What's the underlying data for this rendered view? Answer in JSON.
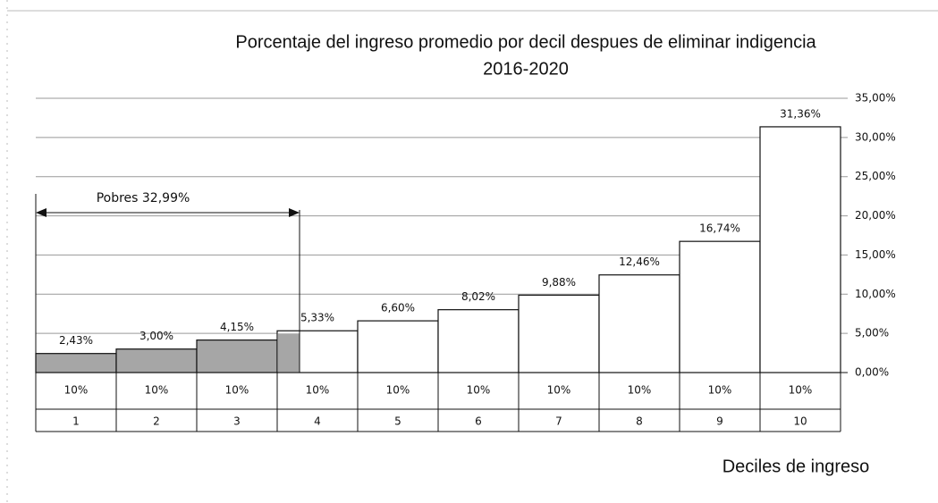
{
  "chart_data": {
    "type": "bar",
    "title": "Porcentaje del ingreso promedio por decil despues de eliminar indigencia",
    "subtitle": "2016-2020",
    "x_label": "Deciles de ingreso",
    "annotation": "Pobres 32,99%",
    "categories": [
      "1",
      "2",
      "3",
      "4",
      "5",
      "6",
      "7",
      "8",
      "9",
      "10"
    ],
    "shares": [
      "10%",
      "10%",
      "10%",
      "10%",
      "10%",
      "10%",
      "10%",
      "10%",
      "10%",
      "10%"
    ],
    "values": [
      2.43,
      3.0,
      4.15,
      5.33,
      6.6,
      8.02,
      9.88,
      12.46,
      16.74,
      31.36
    ],
    "value_labels": [
      "2,43%",
      "3,00%",
      "4,15%",
      "5,33%",
      "6,60%",
      "8,02%",
      "9,88%",
      "12,46%",
      "16,74%",
      "31,36%"
    ],
    "color": "#ffffff",
    "poor_color": "#a6a6a6",
    "ylim": [
      0,
      35
    ],
    "yticks": [
      {
        "value": 0,
        "label": "0,00%"
      },
      {
        "value": 5,
        "label": "5,00%"
      },
      {
        "value": 10,
        "label": "10,00%"
      },
      {
        "value": 15,
        "label": "15,00%"
      },
      {
        "value": 20,
        "label": "20,00%"
      },
      {
        "value": 25,
        "label": "25,00%"
      },
      {
        "value": 30,
        "label": "30,00%"
      },
      {
        "value": 35,
        "label": "35,00%"
      }
    ],
    "grid": true
  }
}
